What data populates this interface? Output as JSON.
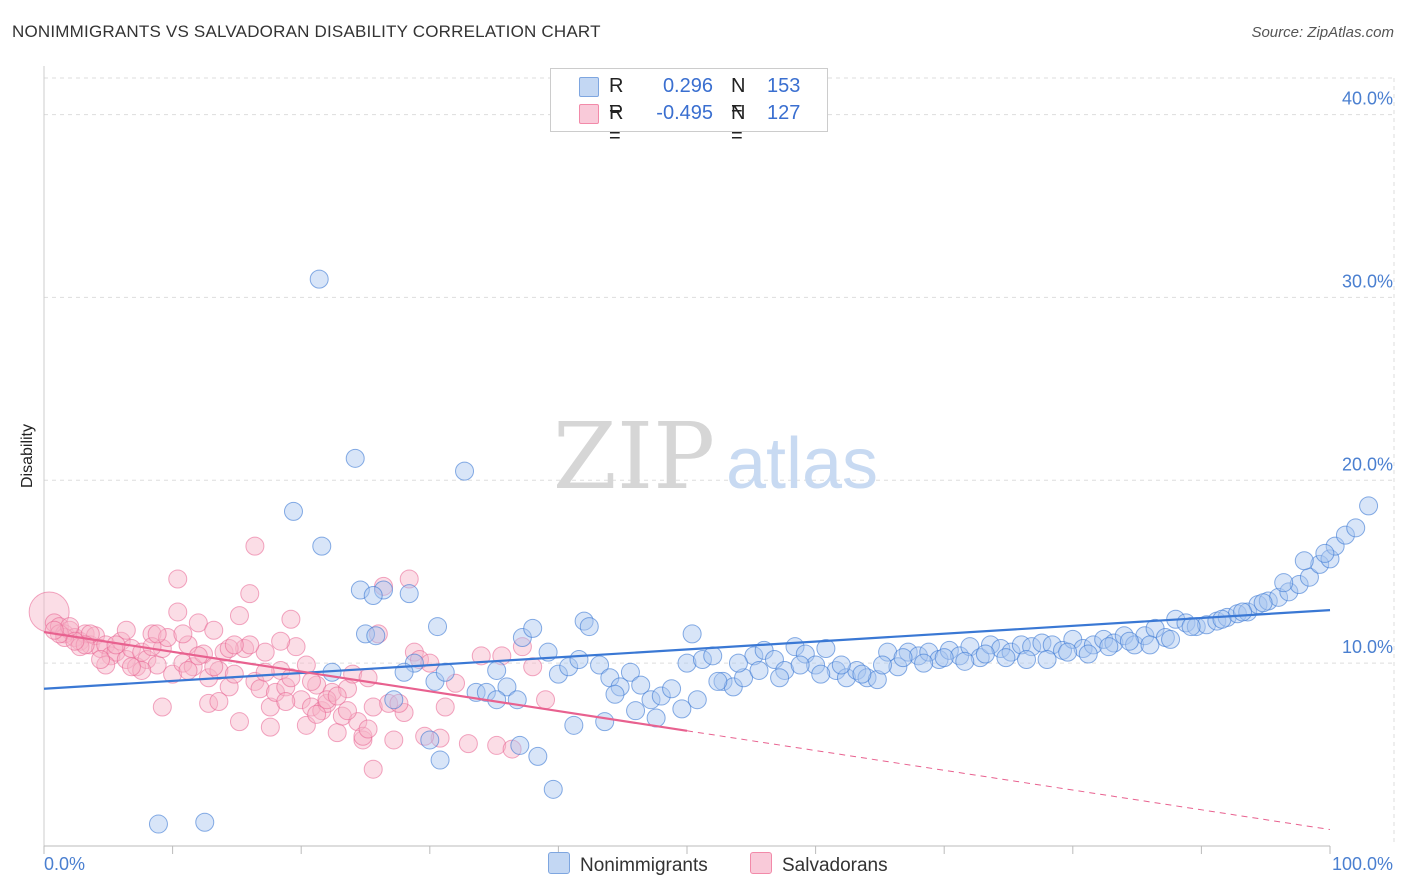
{
  "header": {
    "title": "NONIMMIGRANTS VS SALVADORAN DISABILITY CORRELATION CHART",
    "source": "Source: ZipAtlas.com"
  },
  "legend": {
    "rows": [
      {
        "r_label": "R =",
        "r_value": "0.296",
        "n_label": "N =",
        "n_value": "153",
        "color": "#7ea6e0"
      },
      {
        "r_label": "R =",
        "r_value": "-0.495",
        "n_label": "N =",
        "n_value": "127",
        "color": "#f28aa9"
      }
    ]
  },
  "bottom_legend": {
    "items": [
      {
        "label": "Nonimmigrants",
        "color": "#7ea6e0"
      },
      {
        "label": "Salvadorans",
        "color": "#f28aa9"
      }
    ]
  },
  "watermark": {
    "zip": "ZIP",
    "atlas": "atlas"
  },
  "colors": {
    "blue": "#3a78d4",
    "blue_fill": "#a9c6ef",
    "pink": "#e8618f",
    "pink_fill": "#f6b3c8",
    "grid": "#dddddd"
  },
  "chart_data": {
    "type": "scatter",
    "xlabel": "",
    "ylabel": "Disability",
    "xlim": [
      0,
      100
    ],
    "ylim": [
      0,
      42
    ],
    "x_tick_labels": [
      "0.0%",
      "100.0%"
    ],
    "y_ticks": [
      10,
      20,
      30,
      40
    ],
    "y_tick_labels": [
      "10.0%",
      "20.0%",
      "30.0%",
      "40.0%"
    ],
    "grid": true,
    "series": [
      {
        "name": "Nonimmigrants",
        "trend": {
          "x": [
            0,
            100
          ],
          "y": [
            8.6,
            12.9
          ]
        },
        "points": [
          [
            8.9,
            1.2
          ],
          [
            12.5,
            1.3
          ],
          [
            21.4,
            31.0
          ],
          [
            19.4,
            18.3
          ],
          [
            21.6,
            16.4
          ],
          [
            24.2,
            21.2
          ],
          [
            32.7,
            20.5
          ],
          [
            26.4,
            14.0
          ],
          [
            24.6,
            14.0
          ],
          [
            25.6,
            13.7
          ],
          [
            28.4,
            13.8
          ],
          [
            30.6,
            12.0
          ],
          [
            25.0,
            11.6
          ],
          [
            25.8,
            11.5
          ],
          [
            28.8,
            10.0
          ],
          [
            30.4,
            9.0
          ],
          [
            31.2,
            9.5
          ],
          [
            35.2,
            9.6
          ],
          [
            33.6,
            8.4
          ],
          [
            34.4,
            8.4
          ],
          [
            36.0,
            8.7
          ],
          [
            35.2,
            8.0
          ],
          [
            36.8,
            8.0
          ],
          [
            37.2,
            11.4
          ],
          [
            38.0,
            11.9
          ],
          [
            39.2,
            10.6
          ],
          [
            40.0,
            9.4
          ],
          [
            40.8,
            9.8
          ],
          [
            41.6,
            10.2
          ],
          [
            42.0,
            12.3
          ],
          [
            42.4,
            12.0
          ],
          [
            43.2,
            9.9
          ],
          [
            44.0,
            9.2
          ],
          [
            44.8,
            8.7
          ],
          [
            45.6,
            9.5
          ],
          [
            46.4,
            8.8
          ],
          [
            47.2,
            8.0
          ],
          [
            48.0,
            8.2
          ],
          [
            48.8,
            8.6
          ],
          [
            50.0,
            10.0
          ],
          [
            50.4,
            11.6
          ],
          [
            51.2,
            10.2
          ],
          [
            52.0,
            10.4
          ],
          [
            52.8,
            9.0
          ],
          [
            53.6,
            8.7
          ],
          [
            54.4,
            9.2
          ],
          [
            55.2,
            10.4
          ],
          [
            56.0,
            10.7
          ],
          [
            56.8,
            10.2
          ],
          [
            57.6,
            9.6
          ],
          [
            58.4,
            10.9
          ],
          [
            59.2,
            10.5
          ],
          [
            60.0,
            9.9
          ],
          [
            60.8,
            10.8
          ],
          [
            61.6,
            9.6
          ],
          [
            62.4,
            9.2
          ],
          [
            63.2,
            9.6
          ],
          [
            64.0,
            9.2
          ],
          [
            64.8,
            9.1
          ],
          [
            65.6,
            10.6
          ],
          [
            66.4,
            9.8
          ],
          [
            67.2,
            10.6
          ],
          [
            68.0,
            10.4
          ],
          [
            68.8,
            10.6
          ],
          [
            69.6,
            10.2
          ],
          [
            70.4,
            10.7
          ],
          [
            71.2,
            10.4
          ],
          [
            72.0,
            10.9
          ],
          [
            72.8,
            10.3
          ],
          [
            73.6,
            11.0
          ],
          [
            74.4,
            10.8
          ],
          [
            75.2,
            10.6
          ],
          [
            76.0,
            11.0
          ],
          [
            76.8,
            10.9
          ],
          [
            77.6,
            11.1
          ],
          [
            78.4,
            11.0
          ],
          [
            79.2,
            10.7
          ],
          [
            80.0,
            11.3
          ],
          [
            80.8,
            10.8
          ],
          [
            81.6,
            11.0
          ],
          [
            82.4,
            11.3
          ],
          [
            83.2,
            11.1
          ],
          [
            84.0,
            11.5
          ],
          [
            84.8,
            11.0
          ],
          [
            85.6,
            11.5
          ],
          [
            86.4,
            11.9
          ],
          [
            87.2,
            11.4
          ],
          [
            88.0,
            12.4
          ],
          [
            88.8,
            12.2
          ],
          [
            89.6,
            12.0
          ],
          [
            90.4,
            12.1
          ],
          [
            91.2,
            12.3
          ],
          [
            92.0,
            12.5
          ],
          [
            92.8,
            12.7
          ],
          [
            93.6,
            12.8
          ],
          [
            94.4,
            13.2
          ],
          [
            95.2,
            13.4
          ],
          [
            96.0,
            13.6
          ],
          [
            96.8,
            13.9
          ],
          [
            97.6,
            14.3
          ],
          [
            98.4,
            14.7
          ],
          [
            99.2,
            15.4
          ],
          [
            100.0,
            15.7
          ],
          [
            100.4,
            16.4
          ],
          [
            101.2,
            17.0
          ],
          [
            102.0,
            17.4
          ],
          [
            103.0,
            18.6
          ],
          [
            98.0,
            15.6
          ],
          [
            99.6,
            16.0
          ],
          [
            96.4,
            14.4
          ],
          [
            94.8,
            13.3
          ],
          [
            93.2,
            12.8
          ],
          [
            91.6,
            12.4
          ],
          [
            89.2,
            12.0
          ],
          [
            87.6,
            11.3
          ],
          [
            86.0,
            11.0
          ],
          [
            84.4,
            11.2
          ],
          [
            82.8,
            10.9
          ],
          [
            81.2,
            10.5
          ],
          [
            79.6,
            10.6
          ],
          [
            78.0,
            10.2
          ],
          [
            76.4,
            10.2
          ],
          [
            74.8,
            10.3
          ],
          [
            73.2,
            10.5
          ],
          [
            71.6,
            10.1
          ],
          [
            70.0,
            10.3
          ],
          [
            68.4,
            10.0
          ],
          [
            66.8,
            10.3
          ],
          [
            65.2,
            9.9
          ],
          [
            63.6,
            9.4
          ],
          [
            62.0,
            9.9
          ],
          [
            60.4,
            9.4
          ],
          [
            58.8,
            9.9
          ],
          [
            57.2,
            9.2
          ],
          [
            55.6,
            9.6
          ],
          [
            54.0,
            10.0
          ],
          [
            52.4,
            9.0
          ],
          [
            50.8,
            8.0
          ],
          [
            49.6,
            7.5
          ],
          [
            47.6,
            7.0
          ],
          [
            46.0,
            7.4
          ],
          [
            44.4,
            8.3
          ],
          [
            43.6,
            6.8
          ],
          [
            41.2,
            6.6
          ],
          [
            39.6,
            3.1
          ],
          [
            38.4,
            4.9
          ],
          [
            37.0,
            5.5
          ],
          [
            30.0,
            5.8
          ],
          [
            30.8,
            4.7
          ],
          [
            27.2,
            8.0
          ],
          [
            28.0,
            9.5
          ],
          [
            22.4,
            9.5
          ]
        ]
      },
      {
        "name": "Salvadorans",
        "trend": {
          "x": [
            0,
            50
          ],
          "y": [
            11.7,
            6.3
          ]
        },
        "trend_extension": {
          "x": [
            50,
            100
          ],
          "y": [
            6.3,
            0.9
          ]
        },
        "points": [
          [
            0.4,
            12.8
          ],
          [
            0.8,
            12.2
          ],
          [
            1.2,
            12.0
          ],
          [
            1.6,
            11.6
          ],
          [
            2.0,
            11.8
          ],
          [
            2.4,
            11.4
          ],
          [
            2.8,
            11.2
          ],
          [
            3.2,
            11.6
          ],
          [
            3.6,
            11.0
          ],
          [
            4.0,
            11.5
          ],
          [
            4.4,
            10.8
          ],
          [
            4.8,
            11.0
          ],
          [
            5.2,
            10.4
          ],
          [
            5.6,
            10.6
          ],
          [
            6.0,
            11.2
          ],
          [
            6.4,
            10.2
          ],
          [
            6.8,
            10.8
          ],
          [
            7.2,
            9.8
          ],
          [
            7.6,
            10.6
          ],
          [
            8.0,
            10.2
          ],
          [
            8.4,
            11.6
          ],
          [
            8.8,
            9.9
          ],
          [
            9.2,
            10.8
          ],
          [
            9.6,
            11.4
          ],
          [
            10.0,
            9.4
          ],
          [
            10.4,
            12.8
          ],
          [
            10.8,
            10.0
          ],
          [
            11.2,
            11.0
          ],
          [
            11.6,
            9.8
          ],
          [
            12.0,
            12.2
          ],
          [
            12.4,
            10.5
          ],
          [
            12.8,
            9.2
          ],
          [
            13.2,
            11.8
          ],
          [
            13.6,
            9.6
          ],
          [
            14.0,
            10.6
          ],
          [
            14.4,
            8.7
          ],
          [
            14.8,
            9.4
          ],
          [
            15.2,
            12.6
          ],
          [
            15.6,
            10.8
          ],
          [
            16.0,
            13.8
          ],
          [
            16.4,
            9.0
          ],
          [
            16.8,
            8.6
          ],
          [
            17.2,
            10.6
          ],
          [
            17.6,
            7.6
          ],
          [
            18.0,
            8.4
          ],
          [
            18.4,
            9.6
          ],
          [
            18.8,
            8.7
          ],
          [
            19.2,
            12.4
          ],
          [
            19.6,
            10.9
          ],
          [
            20.0,
            8.0
          ],
          [
            20.4,
            9.9
          ],
          [
            20.8,
            7.6
          ],
          [
            21.2,
            8.8
          ],
          [
            21.6,
            7.4
          ],
          [
            22.0,
            7.8
          ],
          [
            22.4,
            8.4
          ],
          [
            22.8,
            6.2
          ],
          [
            23.2,
            7.1
          ],
          [
            23.6,
            8.6
          ],
          [
            24.0,
            9.4
          ],
          [
            24.4,
            6.8
          ],
          [
            24.8,
            5.8
          ],
          [
            25.2,
            9.2
          ],
          [
            25.6,
            7.6
          ],
          [
            26.0,
            11.6
          ],
          [
            26.4,
            14.2
          ],
          [
            26.8,
            7.8
          ],
          [
            27.2,
            5.8
          ],
          [
            28.0,
            7.3
          ],
          [
            28.4,
            14.6
          ],
          [
            28.8,
            10.6
          ],
          [
            29.2,
            10.2
          ],
          [
            30.0,
            10.0
          ],
          [
            30.8,
            5.9
          ],
          [
            31.2,
            7.6
          ],
          [
            33.0,
            5.6
          ],
          [
            35.2,
            5.5
          ],
          [
            35.6,
            10.4
          ],
          [
            36.4,
            5.3
          ],
          [
            37.2,
            10.9
          ],
          [
            38.0,
            9.8
          ],
          [
            39.0,
            8.0
          ],
          [
            16.4,
            16.4
          ],
          [
            10.4,
            14.6
          ],
          [
            12.8,
            7.8
          ],
          [
            14.4,
            10.8
          ],
          [
            11.2,
            9.6
          ],
          [
            8.4,
            10.9
          ],
          [
            9.2,
            7.6
          ],
          [
            7.6,
            9.6
          ],
          [
            6.4,
            11.8
          ],
          [
            5.6,
            11.0
          ],
          [
            4.8,
            9.9
          ],
          [
            3.6,
            11.6
          ],
          [
            2.8,
            10.9
          ],
          [
            1.6,
            11.4
          ],
          [
            1.2,
            11.6
          ],
          [
            2.0,
            12.0
          ],
          [
            0.8,
            11.8
          ],
          [
            13.6,
            7.9
          ],
          [
            15.2,
            6.8
          ],
          [
            17.6,
            6.5
          ],
          [
            18.8,
            7.9
          ],
          [
            20.4,
            6.6
          ],
          [
            21.2,
            7.2
          ],
          [
            22.0,
            8.0
          ],
          [
            23.6,
            7.4
          ],
          [
            24.8,
            6.0
          ],
          [
            25.2,
            6.4
          ],
          [
            25.6,
            4.2
          ],
          [
            27.6,
            7.8
          ],
          [
            29.6,
            6.0
          ],
          [
            32.0,
            8.9
          ],
          [
            34.0,
            10.4
          ],
          [
            19.2,
            9.2
          ],
          [
            17.2,
            9.5
          ],
          [
            16.0,
            11.0
          ],
          [
            12.0,
            10.4
          ],
          [
            13.2,
            9.8
          ],
          [
            8.8,
            11.6
          ],
          [
            6.8,
            9.8
          ],
          [
            4.4,
            10.2
          ],
          [
            3.2,
            11.0
          ],
          [
            2.4,
            11.2
          ],
          [
            10.8,
            11.6
          ],
          [
            14.8,
            11.0
          ],
          [
            18.4,
            11.2
          ],
          [
            20.8,
            9.0
          ],
          [
            22.8,
            8.2
          ]
        ]
      }
    ]
  }
}
